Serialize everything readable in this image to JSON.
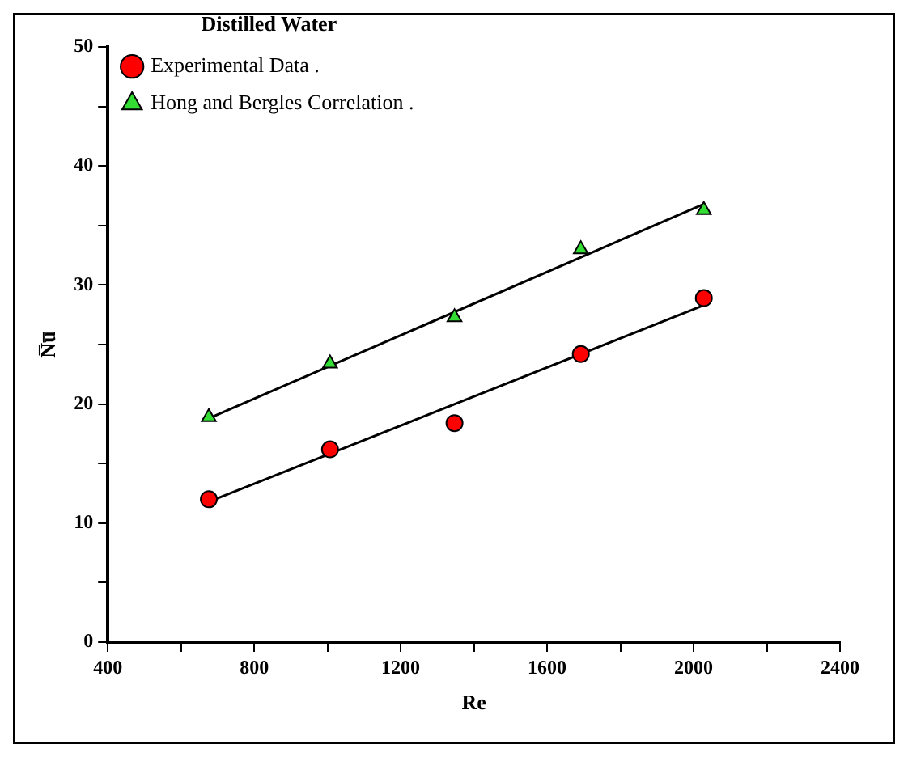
{
  "chart_data": {
    "type": "scatter",
    "xlabel": "Re",
    "ylabel": "N̅u̅",
    "legend_title": "Distilled Water",
    "legend": "top left",
    "grid": false,
    "xlim": [
      400,
      2400
    ],
    "xticks": [
      400,
      {
        "value": 600,
        "label": null
      },
      800,
      {
        "value": 1000,
        "label": null
      },
      1200,
      {
        "value": 1400,
        "label": null
      },
      1600,
      {
        "value": 1800,
        "label": null
      },
      2000,
      {
        "value": 2200,
        "label": null
      },
      2400
    ],
    "ylim": [
      0,
      50
    ],
    "yticks": [
      0,
      {
        "value": 5,
        "label": null
      },
      10,
      {
        "value": 15,
        "label": null
      },
      20,
      {
        "value": 25,
        "label": null
      },
      30,
      {
        "value": 35,
        "label": null
      },
      40,
      {
        "value": 45,
        "label": null
      },
      50
    ],
    "series": [
      {
        "name": "Experimental Data .",
        "type": "scatter",
        "marker": "circle",
        "color": "#ff0000",
        "x": [
          676,
          1007,
          1347,
          1692,
          2028
        ],
        "values": [
          12.0,
          16.2,
          18.4,
          24.2,
          28.9
        ]
      },
      {
        "name": "Hong and Bergles Correlation .",
        "type": "scatter",
        "marker": "triangle",
        "color": "#33dd33",
        "x": [
          676,
          1007,
          1347,
          1692,
          2028
        ],
        "values": [
          18.9,
          23.4,
          27.3,
          33.0,
          36.3
        ]
      },
      {
        "type": "line",
        "marker": "none",
        "color": "#000000",
        "x": [
          676,
          2028
        ],
        "values": [
          11.8,
          28.3
        ]
      },
      {
        "type": "line",
        "marker": "none",
        "color": "#000000",
        "x": [
          676,
          2028
        ],
        "values": [
          18.8,
          36.8
        ]
      }
    ]
  }
}
